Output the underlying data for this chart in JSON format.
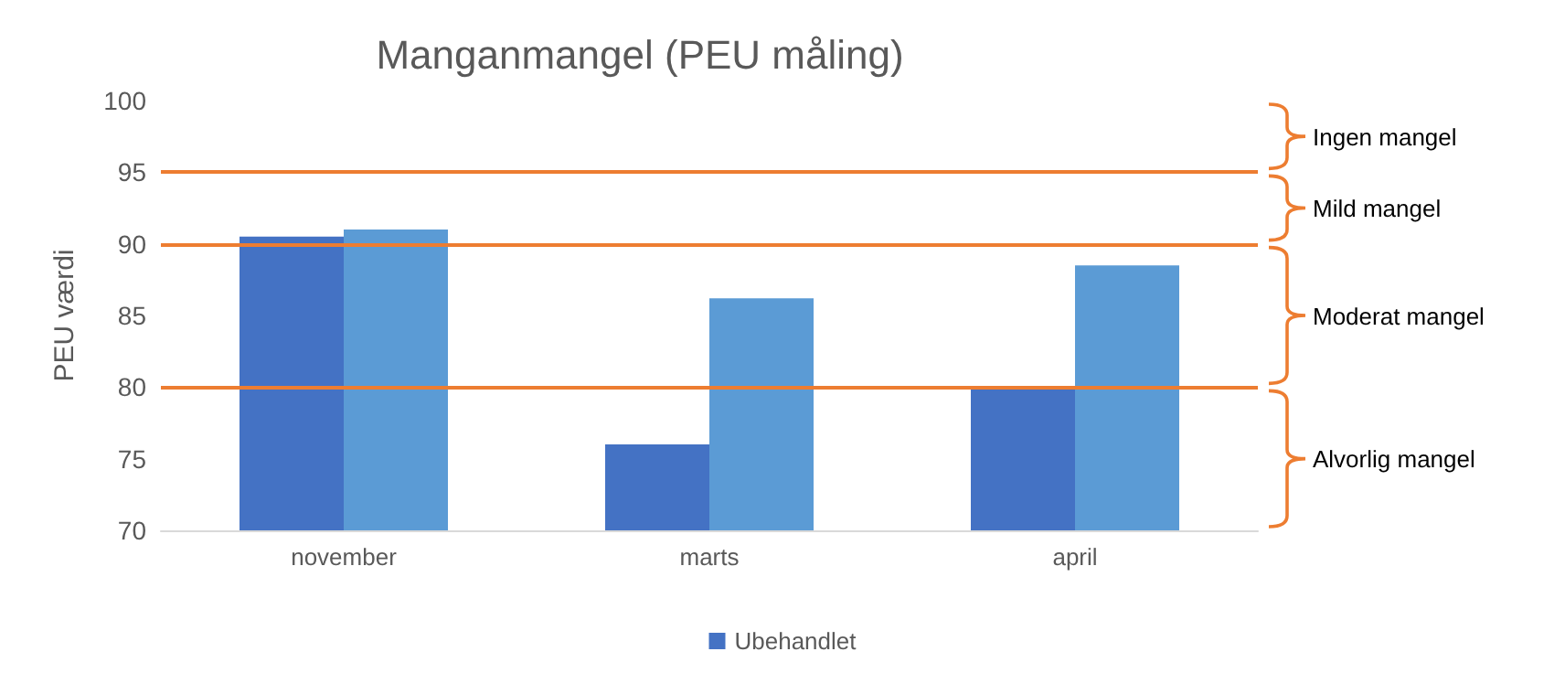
{
  "chart_data": {
    "type": "bar",
    "title": "Manganmangel (PEU måling)",
    "ylabel": "PEU værdi",
    "categories": [
      "november",
      "marts",
      "april"
    ],
    "series": [
      {
        "name": "Ubehandlet",
        "color": "#4472c4",
        "values": [
          90.5,
          76,
          80
        ]
      },
      {
        "color": "#5b9bd5",
        "values": [
          91,
          86.2,
          88.5
        ]
      }
    ],
    "ylim": [
      70,
      100
    ],
    "yticks": [
      70,
      75,
      80,
      85,
      90,
      95,
      100
    ],
    "grid": false,
    "legend": "bottom",
    "ref_lines": [
      {
        "axis": "y",
        "value": 95,
        "color": "#ed7d31"
      },
      {
        "axis": "y",
        "value": 90,
        "color": "#ed7d31"
      },
      {
        "axis": "y",
        "value": 80,
        "color": "#ed7d31"
      }
    ],
    "annotations": [
      "Ingen mangel",
      "Mild mangel",
      "Moderat mangel",
      "Alvorlig mangel"
    ]
  }
}
